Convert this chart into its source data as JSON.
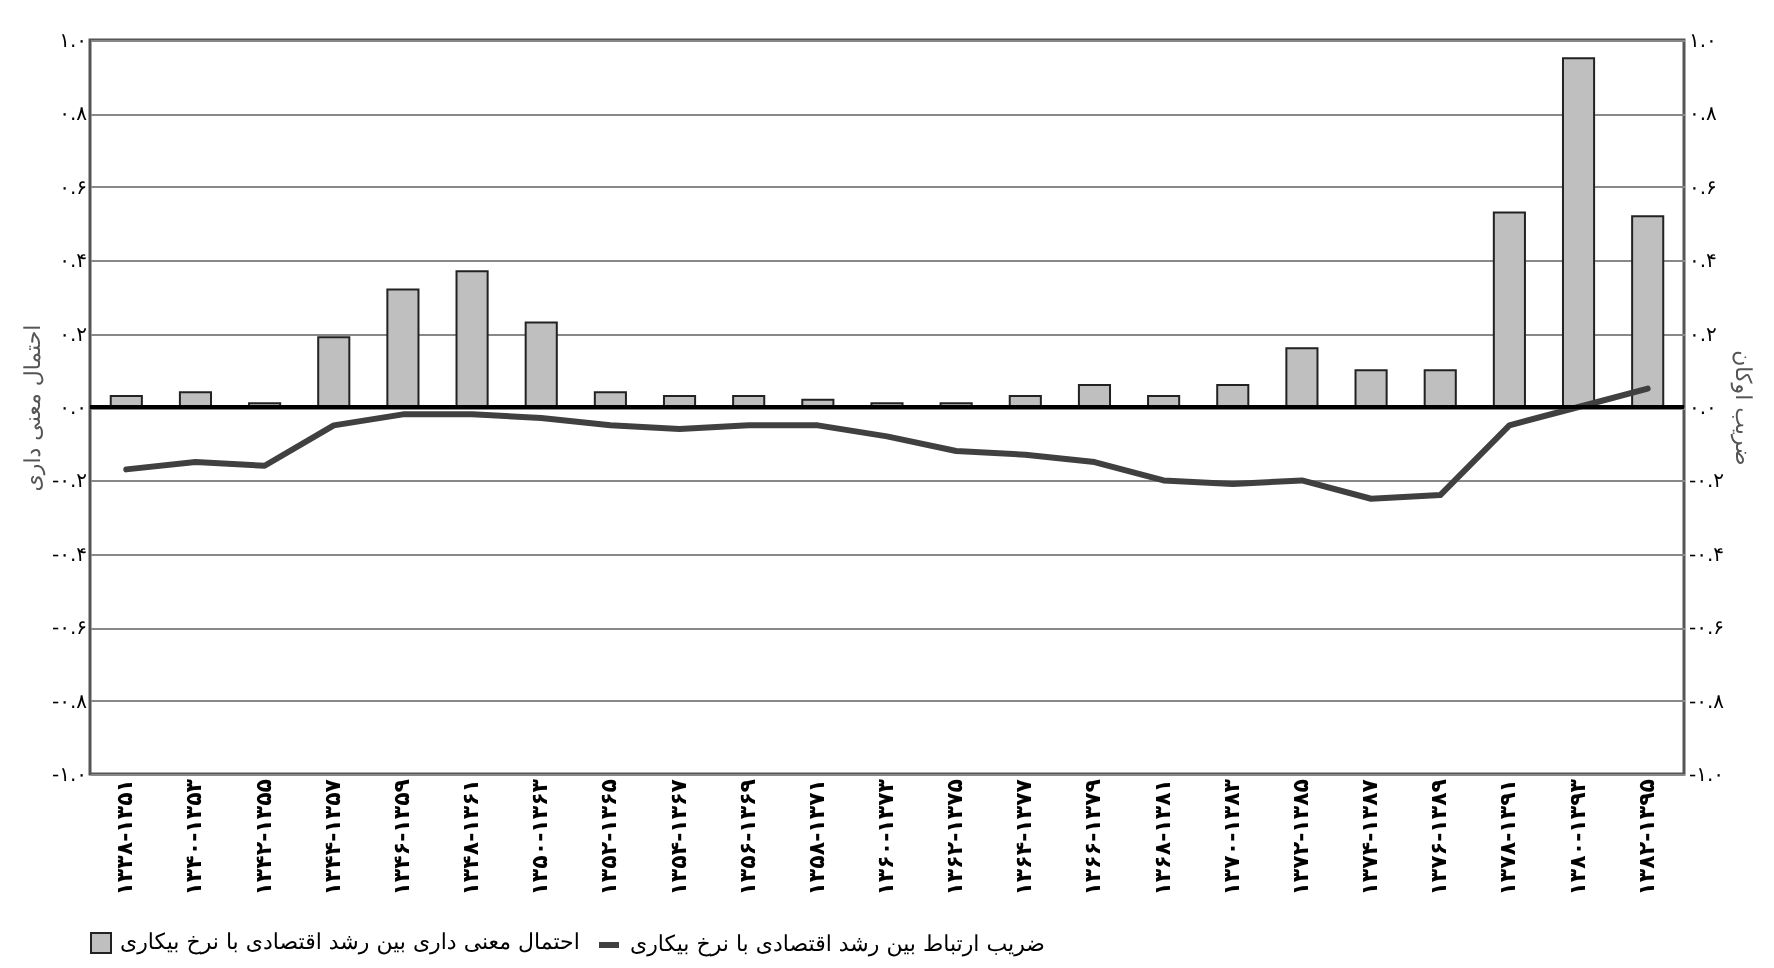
{
  "chart_data": {
    "type": "bar",
    "ylabel": "احتمال معنی داری",
    "y2label": "ضریب اوکان",
    "categories": [
      "۱۳۳۸-۱۳۵۱",
      "۱۳۴۰-۱۳۵۳",
      "۱۳۴۲-۱۳۵۵",
      "۱۳۴۴-۱۳۵۷",
      "۱۳۴۶-۱۳۵۹",
      "۱۳۴۸-۱۳۶۱",
      "۱۳۵۰-۱۳۶۳",
      "۱۳۵۲-۱۳۶۵",
      "۱۳۵۴-۱۳۶۷",
      "۱۳۵۶-۱۳۶۹",
      "۱۳۵۸-۱۳۷۱",
      "۱۳۶۰-۱۳۷۳",
      "۱۳۶۲-۱۳۷۵",
      "۱۳۶۴-۱۳۷۷",
      "۱۳۶۶-۱۳۷۹",
      "۱۳۶۸-۱۳۸۱",
      "۱۳۷۰-۱۳۸۳",
      "۱۳۷۲-۱۳۸۵",
      "۱۳۷۴-۱۳۸۷",
      "۱۳۷۶-۱۳۸۹",
      "۱۳۷۸-۱۳۹۱",
      "۱۳۸۰-۱۳۹۳",
      "۱۳۸۲-۱۳۹۵"
    ],
    "series": [
      {
        "name": "احتمال معنی داری بین رشد اقتصادی با نرخ بیکاری",
        "color": "#bfbfbf",
        "values": [
          0.03,
          0.04,
          0.01,
          0.19,
          0.32,
          0.37,
          0.23,
          0.04,
          0.03,
          0.03,
          0.02,
          0.01,
          0.01,
          0.03,
          0.06,
          0.03,
          0.06,
          0.16,
          0.1,
          0.1,
          0.53,
          0.95,
          0.52
        ]
      },
      {
        "name": "ضریب ارتباط بین رشد اقتصادی با نرخ بیکاری",
        "type": "line",
        "axis": "y2",
        "color": "#404040",
        "values": [
          -0.17,
          -0.15,
          -0.16,
          -0.05,
          -0.02,
          -0.02,
          -0.03,
          -0.05,
          -0.06,
          -0.05,
          -0.05,
          -0.08,
          -0.12,
          -0.13,
          -0.15,
          -0.2,
          -0.21,
          -0.2,
          -0.25,
          -0.24,
          -0.05,
          0.0,
          0.05
        ]
      }
    ],
    "ylim": [
      -1,
      1
    ],
    "yticks": [
      {
        "value": 1,
        "label": "۱.۰"
      },
      {
        "value": 0.8,
        "label": "۰.۸"
      },
      {
        "value": 0.6,
        "label": "۰.۶"
      },
      {
        "value": 0.4,
        "label": "۰.۴"
      },
      {
        "value": 0.2,
        "label": "۰.۲"
      },
      {
        "value": 0,
        "label": "۰.۰"
      },
      {
        "value": -0.2,
        "label": "-۰.۲"
      },
      {
        "value": -0.4,
        "label": "-۰.۴"
      },
      {
        "value": -0.6,
        "label": "-۰.۶"
      },
      {
        "value": -0.8,
        "label": "-۰.۸"
      },
      {
        "value": -1,
        "label": "-۱.۰"
      }
    ],
    "y2lim": [
      -1,
      1
    ],
    "y2ticks": [
      {
        "value": 1,
        "label": "۱.۰"
      },
      {
        "value": 0.8,
        "label": "۰.۸"
      },
      {
        "value": 0.6,
        "label": "۰.۶"
      },
      {
        "value": 0.4,
        "label": "۰.۴"
      },
      {
        "value": 0.2,
        "label": "۰.۲"
      },
      {
        "value": 0,
        "label": "۰.۰"
      },
      {
        "value": -0.2,
        "label": "-۰.۲"
      },
      {
        "value": -0.4,
        "label": "-۰.۴"
      },
      {
        "value": -0.6,
        "label": "-۰.۶"
      },
      {
        "value": -0.8,
        "label": "-۰.۸"
      },
      {
        "value": -1,
        "label": "-۱.۰"
      }
    ],
    "grid": "y",
    "legend": "bottom"
  }
}
